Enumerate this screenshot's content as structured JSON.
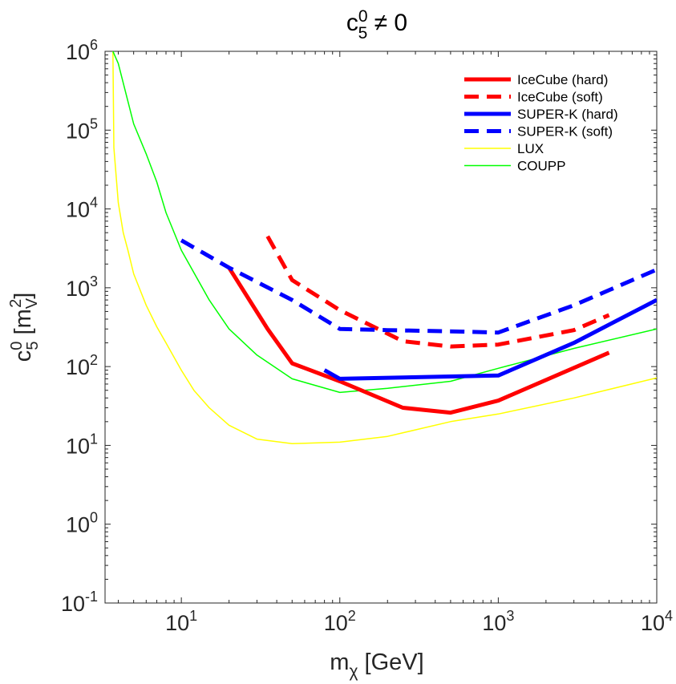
{
  "chart_data": {
    "type": "line",
    "title": "c50 ≠ 0",
    "title_parts": {
      "base": "c",
      "sup": "0",
      "sub": "5",
      "rest": " ≠ 0"
    },
    "xlabel": "mχ [GeV]",
    "xlabel_parts": {
      "base": "m",
      "sub": "χ",
      "rest": " [GeV]"
    },
    "ylabel": "c50 [mV2]",
    "ylabel_parts": {
      "base": "c",
      "sup": "0",
      "sub": "5",
      "mid": " [m",
      "sub2": "V",
      "sup2": "2",
      "end": "]"
    },
    "xscale": "log",
    "yscale": "log",
    "xlim": [
      3.3,
      10000
    ],
    "ylim": [
      0.1,
      1000000
    ],
    "x_ticks": [
      {
        "value": 10,
        "base": "10",
        "exp": "1"
      },
      {
        "value": 100,
        "base": "10",
        "exp": "2"
      },
      {
        "value": 1000,
        "base": "10",
        "exp": "3"
      },
      {
        "value": 10000,
        "base": "10",
        "exp": "4"
      }
    ],
    "y_ticks": [
      {
        "value": 0.1,
        "base": "10",
        "exp": "-1"
      },
      {
        "value": 1,
        "base": "10",
        "exp": "0"
      },
      {
        "value": 10,
        "base": "10",
        "exp": "1"
      },
      {
        "value": 100,
        "base": "10",
        "exp": "2"
      },
      {
        "value": 1000,
        "base": "10",
        "exp": "3"
      },
      {
        "value": 10000,
        "base": "10",
        "exp": "4"
      },
      {
        "value": 100000,
        "base": "10",
        "exp": "5"
      },
      {
        "value": 1000000,
        "base": "10",
        "exp": "6"
      }
    ],
    "grid": false,
    "legend_position": "top-right",
    "series": [
      {
        "name": "IceCube (hard)",
        "color": "#ff0000",
        "style": "solid",
        "weight": "thick",
        "x": [
          20,
          35,
          50,
          100,
          250,
          500,
          1000,
          5000
        ],
        "y": [
          1800,
          300,
          110,
          65,
          30,
          26,
          37,
          150
        ]
      },
      {
        "name": "IceCube (soft)",
        "color": "#ff0000",
        "style": "dashed",
        "weight": "thick",
        "x": [
          35,
          50,
          100,
          250,
          500,
          1000,
          3000,
          5000
        ],
        "y": [
          4500,
          1250,
          520,
          210,
          180,
          190,
          290,
          450
        ]
      },
      {
        "name": "SUPER-K (hard)",
        "color": "#0000ff",
        "style": "solid",
        "weight": "thick",
        "x": [
          80,
          100,
          1000,
          3000,
          10000
        ],
        "y": [
          90,
          70,
          77,
          200,
          700
        ]
      },
      {
        "name": "SUPER-K (soft)",
        "color": "#0000ff",
        "style": "dashed",
        "weight": "thick",
        "x": [
          10,
          20,
          50,
          100,
          200,
          500,
          1000,
          3000,
          10000
        ],
        "y": [
          4000,
          1800,
          700,
          300,
          290,
          280,
          270,
          600,
          1700
        ]
      },
      {
        "name": "LUX",
        "color": "#ffff00",
        "style": "solid",
        "weight": "thin",
        "x": [
          3.7,
          3.75,
          4,
          4.3,
          4.6,
          5,
          6,
          7,
          8,
          10,
          12,
          15,
          20,
          30,
          50,
          100,
          200,
          500,
          1000,
          3000,
          10000
        ],
        "y": [
          1000000,
          60000,
          12000,
          5000,
          3000,
          1500,
          600,
          320,
          200,
          90,
          50,
          30,
          18,
          12,
          10.5,
          11,
          13,
          20,
          25,
          40,
          72
        ]
      },
      {
        "name": "COUPP",
        "color": "#00ff00",
        "style": "solid",
        "weight": "thin",
        "x": [
          3.7,
          4,
          5,
          6,
          7,
          8,
          10,
          15,
          20,
          30,
          50,
          100,
          200,
          500,
          1000,
          3000,
          10000
        ],
        "y": [
          1000000,
          700000,
          120000,
          50000,
          22000,
          9000,
          3000,
          700,
          300,
          140,
          70,
          47,
          53,
          65,
          95,
          170,
          300
        ]
      }
    ]
  }
}
